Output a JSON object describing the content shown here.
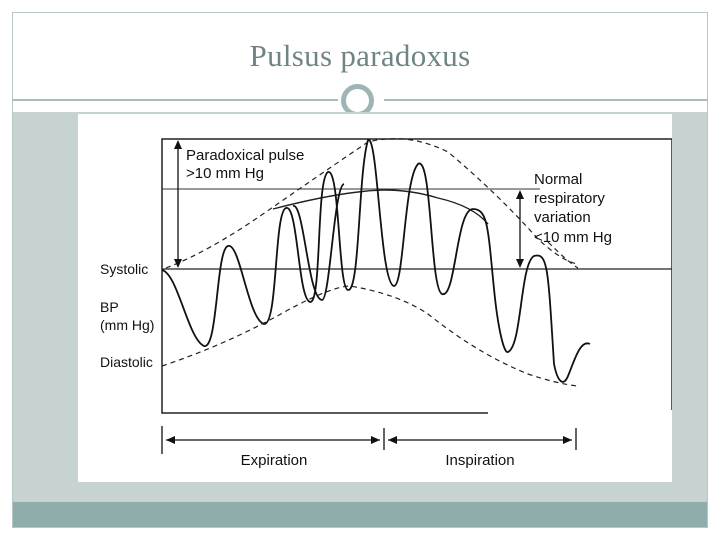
{
  "slide": {
    "title": "Pulsus paradoxus"
  },
  "figure": {
    "annotations": {
      "paradoxical_line1": "Paradoxical pulse",
      "paradoxical_line2": ">10 mm Hg",
      "normal_line1": "Normal",
      "normal_line2": "respiratory",
      "normal_line3": "variation",
      "normal_line4": "<10 mm Hg"
    },
    "axis_labels": {
      "systolic": "Systolic",
      "bp_line1": "BP",
      "bp_line2": "(mm Hg)",
      "diastolic": "Diastolic"
    },
    "phases": {
      "expiration": "Expiration",
      "inspiration": "Inspiration"
    }
  },
  "colors": {
    "title": "#6f8484",
    "content_band": "#c7d3d3",
    "footer_band": "#8fadab",
    "divider": "#a9bcbc"
  }
}
